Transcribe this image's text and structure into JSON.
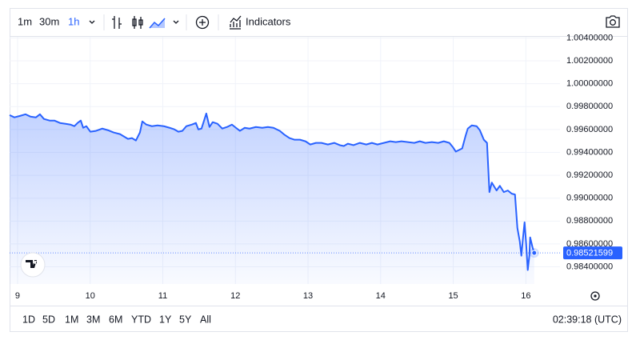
{
  "toolbar": {
    "intervals": [
      "1m",
      "30m",
      "1h"
    ],
    "indicators": "Indicators"
  },
  "range_bar": {
    "ranges": [
      "1D",
      "5D",
      "1M",
      "3M",
      "6M",
      "YTD",
      "1Y",
      "5Y",
      "All"
    ],
    "clock": "02:39:18 (UTC)"
  },
  "chart_data": {
    "type": "area",
    "grid": true,
    "xlim": [
      8.89,
      16.47
    ],
    "xticks": [
      9,
      10,
      11,
      12,
      13,
      14,
      15,
      16
    ],
    "ylim": [
      0.9825,
      1.0041
    ],
    "yticks": [
      {
        "value": 0.984,
        "label": "0.98400000"
      },
      {
        "value": 0.986,
        "label": "0.98600000"
      },
      {
        "value": 0.988,
        "label": "0.98800000"
      },
      {
        "value": 0.99,
        "label": "0.99000000"
      },
      {
        "value": 0.992,
        "label": "0.99200000"
      },
      {
        "value": 0.994,
        "label": "0.99400000"
      },
      {
        "value": 0.996,
        "label": "0.99600000"
      },
      {
        "value": 0.998,
        "label": "0.99800000"
      },
      {
        "value": 1.0,
        "label": "1.00000000"
      },
      {
        "value": 1.002,
        "label": "1.00200000"
      },
      {
        "value": 1.004,
        "label": "1.00400000"
      }
    ],
    "x": [
      8.89,
      8.956,
      9.033,
      9.11,
      9.176,
      9.253,
      9.308,
      9.363,
      9.441,
      9.507,
      9.584,
      9.661,
      9.727,
      9.782,
      9.826,
      9.87,
      9.903,
      9.947,
      10.002,
      10.079,
      10.167,
      10.244,
      10.322,
      10.41,
      10.465,
      10.52,
      10.575,
      10.63,
      10.685,
      10.718,
      10.773,
      10.85,
      10.927,
      11.015,
      11.093,
      11.159,
      11.214,
      11.269,
      11.324,
      11.401,
      11.456,
      11.489,
      11.533,
      11.599,
      11.643,
      11.687,
      11.753,
      11.819,
      11.885,
      11.952,
      12.007,
      12.062,
      12.128,
      12.194,
      12.282,
      12.37,
      12.447,
      12.524,
      12.612,
      12.678,
      12.744,
      12.811,
      12.888,
      12.965,
      13.031,
      13.108,
      13.185,
      13.273,
      13.361,
      13.438,
      13.493,
      13.548,
      13.626,
      13.714,
      13.802,
      13.879,
      13.956,
      14.044,
      14.132,
      14.209,
      14.286,
      14.374,
      14.463,
      14.54,
      14.617,
      14.705,
      14.793,
      14.87,
      14.947,
      14.991,
      15.035,
      15.079,
      15.123,
      15.167,
      15.2,
      15.256,
      15.322,
      15.366,
      15.421,
      15.465,
      15.498,
      15.531,
      15.564,
      15.597,
      15.641,
      15.696,
      15.751,
      15.806,
      15.85,
      15.883,
      15.916,
      15.938,
      15.96,
      15.982,
      16.004,
      16.026,
      16.048,
      16.059,
      16.093,
      16.115
    ],
    "series": [
      {
        "color": "#2962ff",
        "values": [
          0.99726,
          0.99706,
          0.99719,
          0.99733,
          0.99713,
          0.99706,
          0.99733,
          0.99692,
          0.99678,
          0.99678,
          0.99657,
          0.9965,
          0.99643,
          0.99629,
          0.99657,
          0.99678,
          0.99615,
          0.99629,
          0.99581,
          0.99588,
          0.99608,
          0.99594,
          0.99574,
          0.9956,
          0.99539,
          0.99518,
          0.99525,
          0.99504,
          0.99574,
          0.99671,
          0.99643,
          0.99629,
          0.99636,
          0.99629,
          0.99615,
          0.99601,
          0.99581,
          0.99588,
          0.99629,
          0.99643,
          0.99657,
          0.99601,
          0.99608,
          0.9974,
          0.99622,
          0.99664,
          0.9965,
          0.99608,
          0.99622,
          0.99643,
          0.99615,
          0.99588,
          0.99615,
          0.99608,
          0.99622,
          0.99615,
          0.99622,
          0.99615,
          0.99588,
          0.99553,
          0.99525,
          0.99511,
          0.99511,
          0.99497,
          0.99469,
          0.99483,
          0.99483,
          0.99469,
          0.99483,
          0.99463,
          0.99456,
          0.99476,
          0.99463,
          0.99483,
          0.99469,
          0.99483,
          0.99469,
          0.99483,
          0.99497,
          0.9949,
          0.99497,
          0.9949,
          0.99483,
          0.99497,
          0.99483,
          0.9949,
          0.99483,
          0.99497,
          0.99483,
          0.99449,
          0.99407,
          0.99421,
          0.99435,
          0.99539,
          0.99608,
          0.99636,
          0.99629,
          0.99594,
          0.99511,
          0.99483,
          0.99053,
          0.99136,
          0.99101,
          0.99067,
          0.99108,
          0.99053,
          0.99067,
          0.99039,
          0.99032,
          0.9874,
          0.98622,
          0.98497,
          0.9865,
          0.98789,
          0.98601,
          0.98372,
          0.98497,
          0.98657,
          0.98567,
          0.98521599
        ]
      }
    ]
  }
}
